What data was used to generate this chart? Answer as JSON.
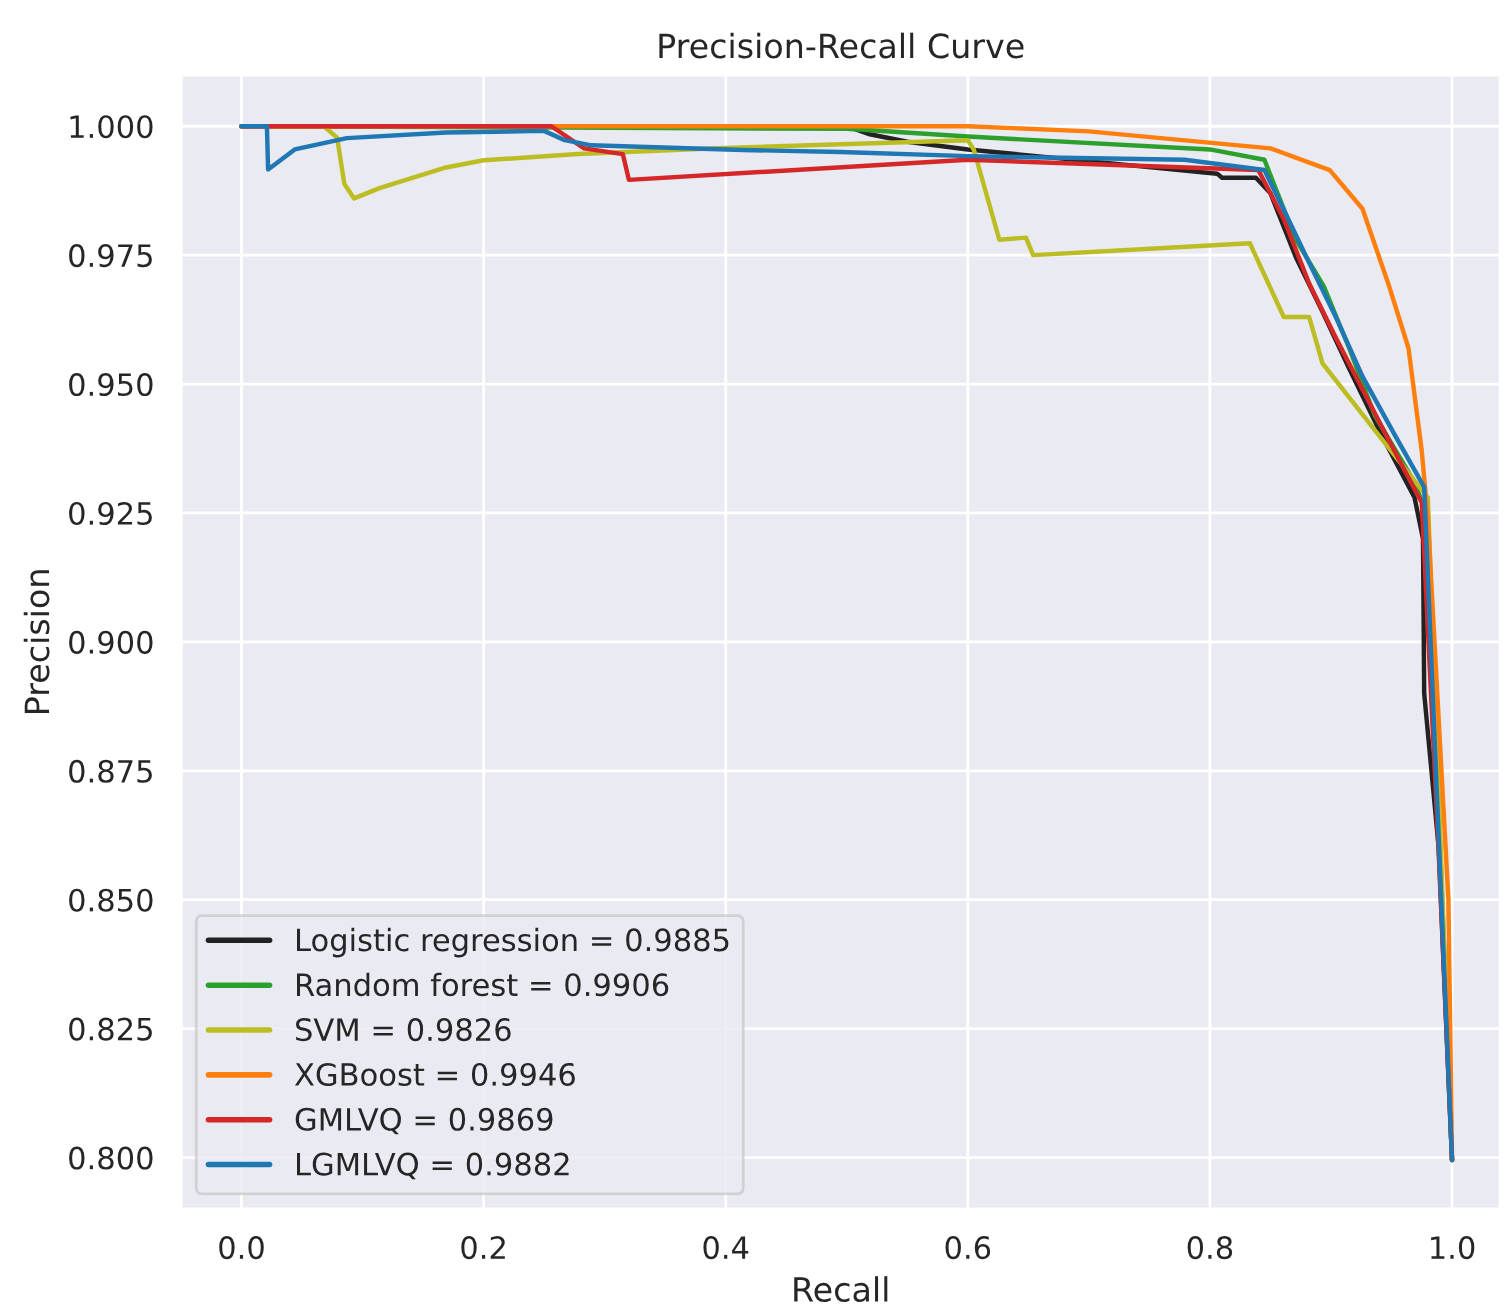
{
  "chart_data": {
    "type": "line",
    "title": "Precision-Recall Curve",
    "xlabel": "Recall",
    "ylabel": "Precision",
    "xlim": [
      -0.05,
      1.04
    ],
    "ylim": [
      0.79,
      1.01
    ],
    "xticks": [
      {
        "value": 0,
        "label": "0.0"
      },
      0.2,
      0.4,
      0.6,
      0.8,
      {
        "value": 1,
        "label": "1.0"
      }
    ],
    "yticks": [
      {
        "value": 0.8,
        "label": "0.800"
      },
      0.825,
      {
        "value": 0.85,
        "label": "0.850"
      },
      0.875,
      {
        "value": 0.9,
        "label": "0.900"
      },
      0.925,
      {
        "value": 0.95,
        "label": "0.950"
      },
      0.975,
      {
        "value": 1,
        "label": "1.000"
      }
    ],
    "grid": true,
    "legend": "bottom left",
    "line_style": "solid",
    "series": [
      {
        "name": "Logistic regression = 0.9885",
        "color": "#222222",
        "x": [
          0,
          0.5,
          0.518,
          0.55,
          0.6,
          0.806,
          0.81,
          0.838,
          0.85,
          0.871,
          0.893,
          0.915,
          0.942,
          0.969,
          0.976,
          0.977,
          0.989,
          1.0
        ],
        "values": [
          1.0,
          1.0,
          0.9985,
          0.997,
          0.9955,
          0.9908,
          0.99,
          0.99,
          0.987,
          0.9746,
          0.964,
          0.953,
          0.94,
          0.928,
          0.92,
          0.89,
          0.86,
          0.7995
        ]
      },
      {
        "name": "Random forest = 0.9906",
        "color": "#2ca02c",
        "x": [
          0,
          0.5,
          0.6,
          0.8,
          0.845,
          0.871,
          0.894,
          0.915,
          0.936,
          0.969,
          0.98,
          1.0
        ],
        "values": [
          1.0,
          0.9995,
          0.998,
          0.9955,
          0.9935,
          0.978,
          0.969,
          0.957,
          0.944,
          0.931,
          0.924,
          0.7995
        ]
      },
      {
        "name": "SVM = 0.9826",
        "color": "#bcbd22",
        "x": [
          0,
          0.068,
          0.079,
          0.085,
          0.093,
          0.114,
          0.169,
          0.2,
          0.278,
          0.387,
          0.6,
          0.605,
          0.626,
          0.648,
          0.654,
          0.833,
          0.861,
          0.882,
          0.893,
          0.931,
          0.98,
          1.0
        ],
        "values": [
          1.0,
          1.0,
          0.9978,
          0.9888,
          0.986,
          0.988,
          0.992,
          0.9934,
          0.9946,
          0.9957,
          0.9973,
          0.9954,
          0.978,
          0.9784,
          0.975,
          0.9773,
          0.963,
          0.963,
          0.954,
          0.9426,
          0.928,
          0.7995
        ]
      },
      {
        "name": "XGBoost = 0.9946",
        "color": "#ff7f0e",
        "x": [
          0,
          0.6,
          0.7,
          0.85,
          0.899,
          0.926,
          0.948,
          0.964,
          0.975,
          0.98,
          0.997,
          1.0
        ],
        "values": [
          1.0,
          1.0,
          0.999,
          0.9957,
          0.9915,
          0.984,
          0.969,
          0.957,
          0.937,
          0.924,
          0.85,
          0.7995
        ]
      },
      {
        "name": "GMLVQ = 0.9869",
        "color": "#d62728",
        "x": [
          0,
          0.256,
          0.283,
          0.315,
          0.32,
          0.6,
          0.84,
          0.861,
          0.882,
          0.904,
          0.926,
          0.948,
          0.975,
          0.989,
          1.0
        ],
        "values": [
          1.0,
          1.0,
          0.9957,
          0.9946,
          0.9896,
          0.9935,
          0.9915,
          0.982,
          0.9695,
          0.959,
          0.949,
          0.939,
          0.927,
          0.859,
          0.7995
        ]
      },
      {
        "name": "LGMLVQ = 0.9882",
        "color": "#1f77b4",
        "x": [
          0,
          0.021,
          0.022,
          0.044,
          0.087,
          0.169,
          0.25,
          0.267,
          0.289,
          0.414,
          0.495,
          0.6,
          0.779,
          0.845,
          0.861,
          0.882,
          0.904,
          0.926,
          0.953,
          0.977,
          1.0
        ],
        "values": [
          1.0,
          1.0,
          0.9916,
          0.9955,
          0.9977,
          0.9988,
          0.9991,
          0.9973,
          0.9963,
          0.9954,
          0.995,
          0.9942,
          0.9935,
          0.9915,
          0.9838,
          0.9735,
          0.963,
          0.9515,
          0.94,
          0.93,
          0.7995
        ]
      }
    ]
  }
}
